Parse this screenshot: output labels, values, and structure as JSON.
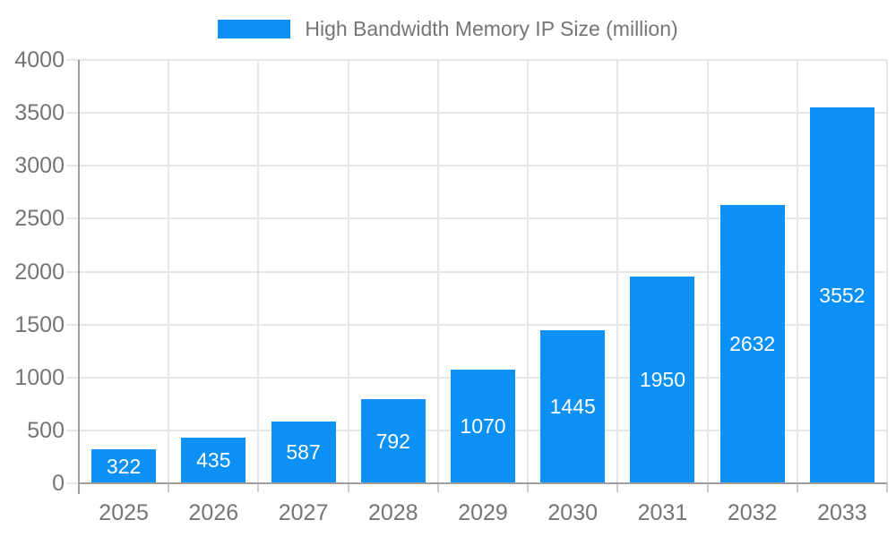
{
  "chart_data": {
    "type": "bar",
    "title": "High Bandwidth Memory IP Size (million)",
    "categories": [
      "2025",
      "2026",
      "2027",
      "2028",
      "2029",
      "2030",
      "2031",
      "2032",
      "2033"
    ],
    "values": [
      322,
      435,
      587,
      792,
      1070,
      1445,
      1950,
      2632,
      3552
    ],
    "xlabel": "",
    "ylabel": "",
    "ylim": [
      0,
      4000
    ],
    "ytick_step": 500,
    "ytick_labels": [
      "0",
      "500",
      "1000",
      "1500",
      "2000",
      "2500",
      "3000",
      "3500",
      "4000"
    ],
    "grid": true,
    "legend_position": "top-center",
    "bar_labels_inside": true
  },
  "colors": {
    "background": "#ffffff",
    "bar": "#0b90f5",
    "grid": "#e6e6e6",
    "axis": "#9e9e9e",
    "x_tick": "#cccccc",
    "tick_label": "#757575",
    "legend_text": "#757575",
    "bar_label": "#ffffff"
  }
}
